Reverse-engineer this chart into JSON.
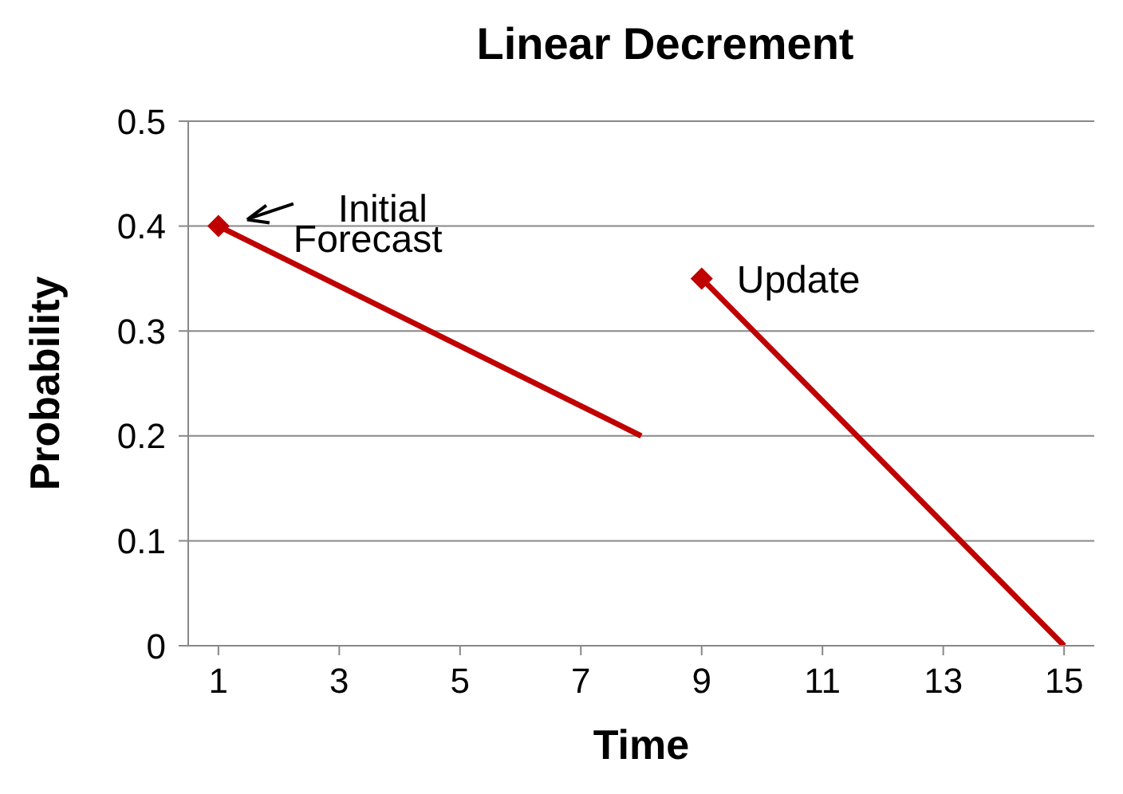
{
  "chart_data": {
    "type": "line",
    "title": "Linear Decrement",
    "xlabel": "Time",
    "ylabel": "Probability",
    "xlim": [
      0.5,
      15.5
    ],
    "xticks": [
      1,
      3,
      5,
      7,
      9,
      11,
      13,
      15
    ],
    "ylim": [
      0,
      0.5
    ],
    "yticks": [
      0,
      0.1,
      0.2,
      0.3,
      0.4,
      0.5
    ],
    "grid": "y",
    "line_style": "solid",
    "series": [
      {
        "color": "#c00000",
        "x": [
          1,
          8
        ],
        "values": [
          0.4,
          0.2
        ],
        "marker": "none"
      },
      {
        "color": "#c00000",
        "x": [
          9,
          15
        ],
        "values": [
          0.35,
          0
        ],
        "marker": "none"
      },
      {
        "type": "scatter",
        "color": "#c00000",
        "x": [
          1,
          9
        ],
        "values": [
          0.4,
          0.35
        ],
        "marker": "diamond"
      }
    ],
    "annotations": [
      {
        "text": "Initial Forecast",
        "x": 1,
        "y": 0.4
      },
      {
        "text": "Update",
        "x": 9,
        "y": 0.35
      }
    ]
  }
}
